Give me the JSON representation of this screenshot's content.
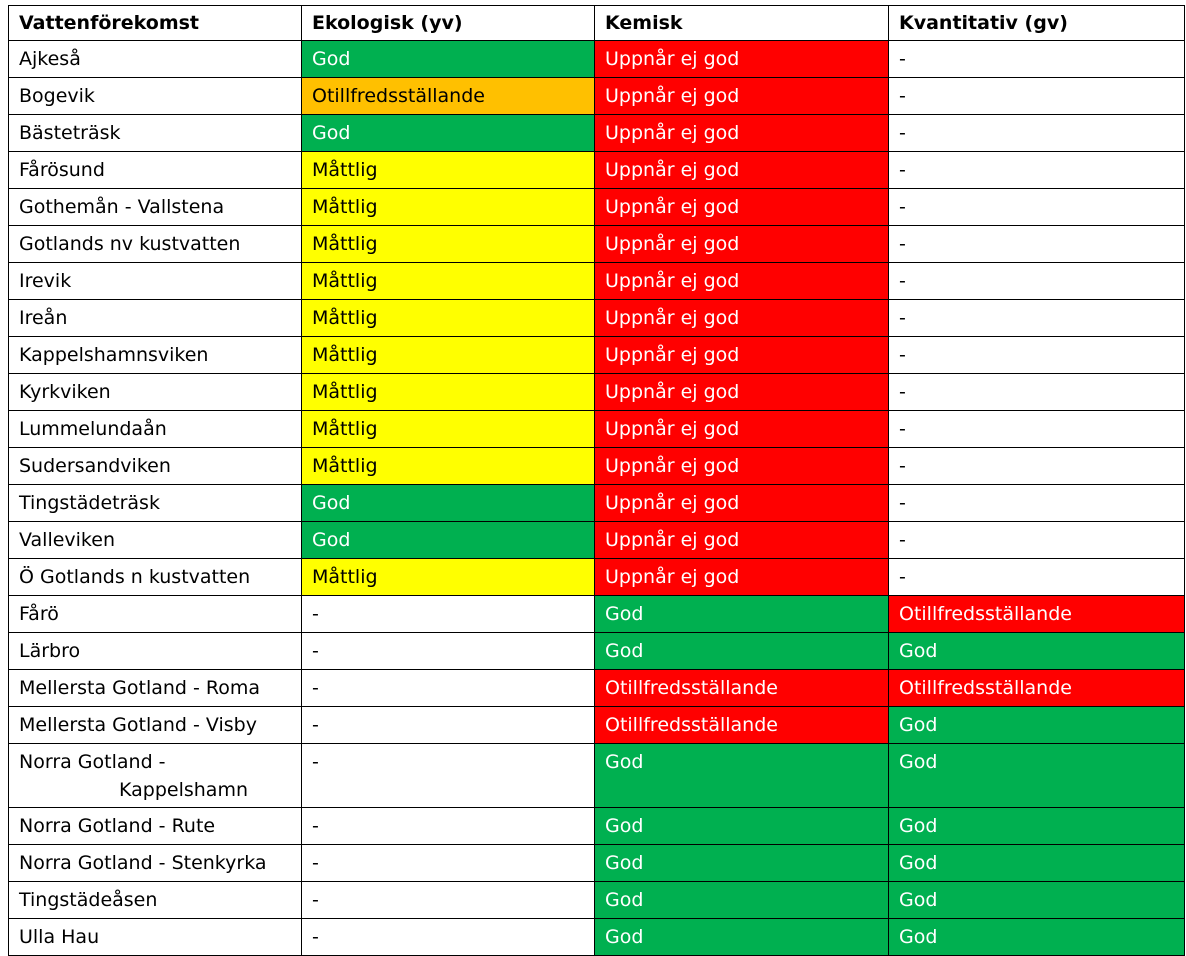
{
  "headers": [
    "Vattenförekomst",
    "Ekologisk (yv)",
    "Kemisk",
    "Kvantitativ (gv)"
  ],
  "status_colors": {
    "green": "#00B050",
    "red": "#FF0000",
    "yellow": "#FFFF00",
    "orange": "#FFC000",
    "none": "#FFFFFF"
  },
  "rows": [
    {
      "name": "Ajkeså",
      "eko": "God",
      "kem": "Uppnår ej god",
      "kva": "-"
    },
    {
      "name": "Bogevik",
      "eko": "Otillfredsställande",
      "kem": "Uppnår ej god",
      "kva": "-"
    },
    {
      "name": "Bästeträsk",
      "eko": "God",
      "kem": "Uppnår ej god",
      "kva": "-"
    },
    {
      "name": "Fårösund",
      "eko": "Måttlig",
      "kem": "Uppnår ej god",
      "kva": "-"
    },
    {
      "name": "Gothemån - Vallstena",
      "eko": "Måttlig",
      "kem": "Uppnår ej god",
      "kva": "-"
    },
    {
      "name": "Gotlands nv kustvatten",
      "eko": "Måttlig",
      "kem": "Uppnår ej god",
      "kva": "-"
    },
    {
      "name": "Irevik",
      "eko": "Måttlig",
      "kem": "Uppnår ej god",
      "kva": "-"
    },
    {
      "name": "Ireån",
      "eko": "Måttlig",
      "kem": "Uppnår ej god",
      "kva": "-"
    },
    {
      "name": "Kappelshamnsviken",
      "eko": "Måttlig",
      "kem": "Uppnår ej god",
      "kva": "-"
    },
    {
      "name": "Kyrkviken",
      "eko": "Måttlig",
      "kem": "Uppnår ej god",
      "kva": "-"
    },
    {
      "name": "Lummelundaån",
      "eko": "Måttlig",
      "kem": "Uppnår ej god",
      "kva": "-"
    },
    {
      "name": "Sudersandviken",
      "eko": "Måttlig",
      "kem": "Uppnår ej god",
      "kva": "-"
    },
    {
      "name": "Tingstädeträsk",
      "eko": "God",
      "kem": "Uppnår ej god",
      "kva": "-"
    },
    {
      "name": "Valleviken",
      "eko": "God",
      "kem": "Uppnår ej god",
      "kva": "-"
    },
    {
      "name": "Ö Gotlands n kustvatten",
      "eko": "Måttlig",
      "kem": "Uppnår ej god",
      "kva": "-"
    },
    {
      "name": "Fårö",
      "eko": "-",
      "kem": "God",
      "kva": "Otillfredsställande"
    },
    {
      "name": "Lärbro",
      "eko": "-",
      "kem": "God",
      "kva": "God"
    },
    {
      "name": "Mellersta Gotland - Roma",
      "eko": "-",
      "kem": "Otillfredsställande",
      "kva": "Otillfredsställande"
    },
    {
      "name": "Mellersta Gotland - Visby",
      "eko": "-",
      "kem": "Otillfredsställande",
      "kva": "God"
    },
    {
      "name_lines": [
        "Norra Gotland -",
        "Kappelshamn"
      ],
      "eko": "-",
      "kem": "God",
      "kva": "God"
    },
    {
      "name": "Norra Gotland - Rute",
      "eko": "-",
      "kem": "God",
      "kva": "God"
    },
    {
      "name": "Norra Gotland - Stenkyrka",
      "eko": "-",
      "kem": "God",
      "kva": "God"
    },
    {
      "name": "Tingstädeåsen",
      "eko": "-",
      "kem": "God",
      "kva": "God"
    },
    {
      "name": "Ulla Hau",
      "eko": "-",
      "kem": "God",
      "kva": "God"
    }
  ]
}
